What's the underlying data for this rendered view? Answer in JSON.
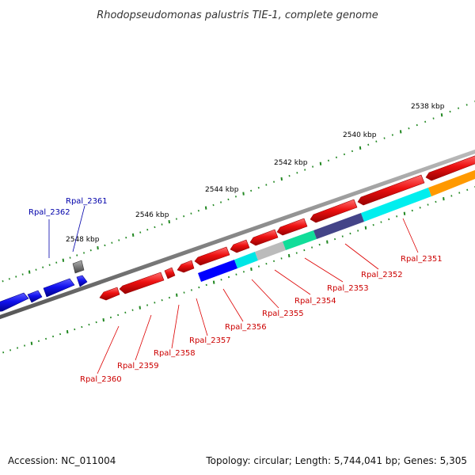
{
  "title": "Rhodopseudomonas palustris TIE-1, complete genome",
  "footer": {
    "accession": "Accession: NC_011004",
    "summary": "Topology: circular; Length: 5,744,041 bp; Genes: 5,305"
  },
  "scale_labels": [
    "2538 kbp",
    "2540 kbp",
    "2542 kbp",
    "2544 kbp",
    "2546 kbp",
    "2548 kbp"
  ],
  "genes": [
    {
      "name": "Rpal_2362",
      "strand": "outer",
      "color": "#0000ee"
    },
    {
      "name": "Rpal_2361",
      "strand": "outer",
      "color": "#0000ee"
    },
    {
      "name": "Rpal_2360",
      "strand": "inner",
      "color": "#dd0000"
    },
    {
      "name": "Rpal_2359",
      "strand": "inner",
      "color": "#dd0000"
    },
    {
      "name": "Rpal_2358",
      "strand": "inner",
      "color": "#dd0000"
    },
    {
      "name": "Rpal_2357",
      "strand": "inner",
      "color": "#dd0000"
    },
    {
      "name": "Rpal_2356",
      "strand": "inner",
      "color": "#dd0000"
    },
    {
      "name": "Rpal_2355",
      "strand": "inner",
      "color": "#dd0000"
    },
    {
      "name": "Rpal_2354",
      "strand": "inner",
      "color": "#dd0000"
    },
    {
      "name": "Rpal_2353",
      "strand": "inner",
      "color": "#dd0000"
    },
    {
      "name": "Rpal_2352",
      "strand": "inner",
      "color": "#dd0000"
    },
    {
      "name": "Rpal_2351",
      "strand": "inner",
      "color": "#dd0000"
    }
  ],
  "colors": {
    "backbone": "#888888",
    "forward_cds": "#ee1111",
    "reverse_cds": "#1111dd",
    "scale_ticks": "#228822",
    "blue": "#0000ff",
    "cyan": "#00eeee",
    "gray": "#bbbbbb",
    "green": "#11dd99",
    "slate": "#444488",
    "orange": "#ff9900",
    "dark_gray": "#555555"
  }
}
